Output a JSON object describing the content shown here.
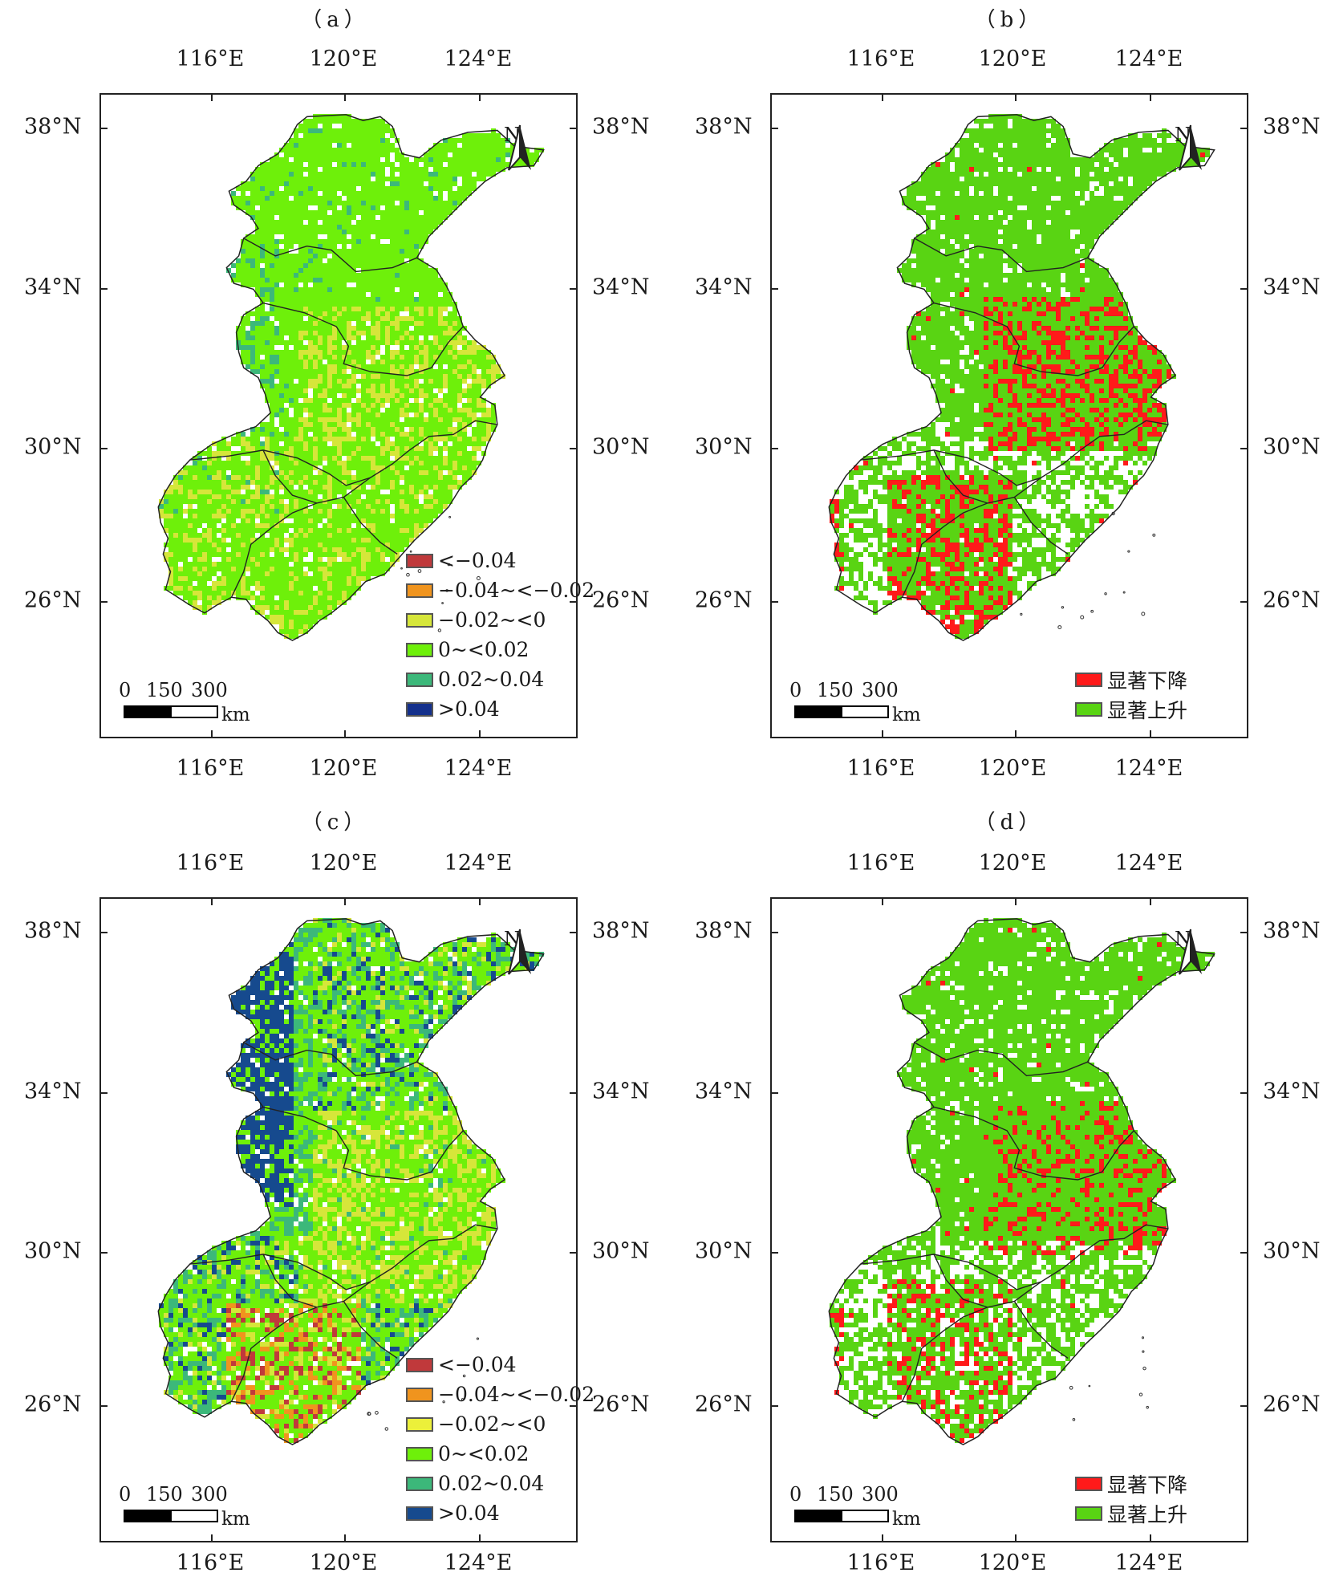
{
  "colors": {
    "class_lt_m004": "#c0393b",
    "class_m004_m002": "#f0941e",
    "class_m002_0": "#d6e63a",
    "class_0_002": "#6ef00a",
    "class_002_004": "#3cb87a",
    "class_gt_004": "#14308c",
    "class_gt_004_c": "#164a8e",
    "sig_decrease": "#ff1a1a",
    "sig_increase": "#59d413"
  },
  "axes": {
    "lon_labels": [
      "116°E",
      "120°E",
      "124°E"
    ],
    "lat_labels": [
      "38°N",
      "34°N",
      "30°N",
      "26°N"
    ]
  },
  "north_letter": "N",
  "scale": {
    "labels": [
      "0",
      "150",
      "300"
    ],
    "unit": "km"
  },
  "panels": [
    {
      "label": "（a）",
      "type": "classified",
      "legend": [
        {
          "text": "<−0.04",
          "color_key": "class_lt_m004"
        },
        {
          "text": "−0.04~<−0.02",
          "color_key": "class_m004_m002"
        },
        {
          "text": "−0.02~<0",
          "color_key": "class_m002_0"
        },
        {
          "text": "0~<0.02",
          "color_key": "class_0_002"
        },
        {
          "text": "0.02~0.04",
          "color_key": "class_002_004"
        },
        {
          "text": ">0.04",
          "color_key": "class_gt_004"
        }
      ]
    },
    {
      "label": "（b）",
      "type": "significance",
      "legend": [
        {
          "text": "显著下降",
          "color_key": "sig_decrease"
        },
        {
          "text": "显著上升",
          "color_key": "sig_increase"
        }
      ]
    },
    {
      "label": "（c）",
      "type": "classified",
      "legend": [
        {
          "text": "<−0.04",
          "color_key": "class_lt_m004"
        },
        {
          "text": "−0.04~<−0.02",
          "color_key": "class_m004_m002"
        },
        {
          "text": "−0.02~<0",
          "color_key": "class_m002_0"
        },
        {
          "text": "0~<0.02",
          "color_key": "class_0_002"
        },
        {
          "text": "0.02~0.04",
          "color_key": "class_002_004"
        },
        {
          "text": ">0.04",
          "color_key": "class_gt_004_c"
        }
      ]
    },
    {
      "label": "（d）",
      "type": "significance",
      "legend": [
        {
          "text": "显著下降",
          "color_key": "sig_decrease"
        },
        {
          "text": "显著上升",
          "color_key": "sig_increase"
        }
      ]
    }
  ]
}
